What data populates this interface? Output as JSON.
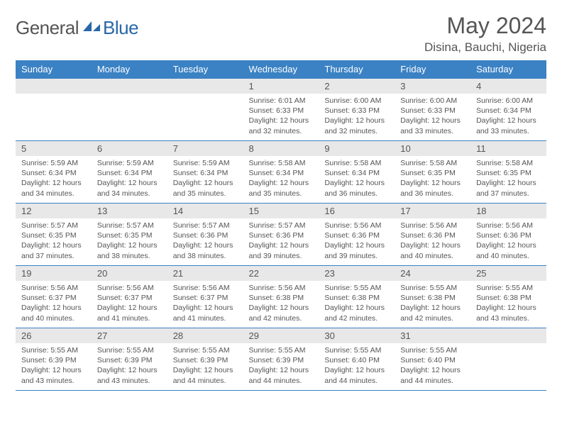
{
  "brand": {
    "part1": "General",
    "part2": "Blue"
  },
  "title": "May 2024",
  "location": "Disina, Bauchi, Nigeria",
  "colors": {
    "header_bg": "#3b82c4",
    "header_text": "#ffffff",
    "daynum_bg": "#e8e8e8",
    "border": "#3b82c4",
    "text": "#555555",
    "brand_gray": "#555555",
    "brand_blue": "#2968a8"
  },
  "weekdays": [
    "Sunday",
    "Monday",
    "Tuesday",
    "Wednesday",
    "Thursday",
    "Friday",
    "Saturday"
  ],
  "weeks": [
    [
      null,
      null,
      null,
      {
        "n": "1",
        "sr": "6:01 AM",
        "ss": "6:33 PM",
        "dl": "12 hours and 32 minutes."
      },
      {
        "n": "2",
        "sr": "6:00 AM",
        "ss": "6:33 PM",
        "dl": "12 hours and 32 minutes."
      },
      {
        "n": "3",
        "sr": "6:00 AM",
        "ss": "6:33 PM",
        "dl": "12 hours and 33 minutes."
      },
      {
        "n": "4",
        "sr": "6:00 AM",
        "ss": "6:34 PM",
        "dl": "12 hours and 33 minutes."
      }
    ],
    [
      {
        "n": "5",
        "sr": "5:59 AM",
        "ss": "6:34 PM",
        "dl": "12 hours and 34 minutes."
      },
      {
        "n": "6",
        "sr": "5:59 AM",
        "ss": "6:34 PM",
        "dl": "12 hours and 34 minutes."
      },
      {
        "n": "7",
        "sr": "5:59 AM",
        "ss": "6:34 PM",
        "dl": "12 hours and 35 minutes."
      },
      {
        "n": "8",
        "sr": "5:58 AM",
        "ss": "6:34 PM",
        "dl": "12 hours and 35 minutes."
      },
      {
        "n": "9",
        "sr": "5:58 AM",
        "ss": "6:34 PM",
        "dl": "12 hours and 36 minutes."
      },
      {
        "n": "10",
        "sr": "5:58 AM",
        "ss": "6:35 PM",
        "dl": "12 hours and 36 minutes."
      },
      {
        "n": "11",
        "sr": "5:58 AM",
        "ss": "6:35 PM",
        "dl": "12 hours and 37 minutes."
      }
    ],
    [
      {
        "n": "12",
        "sr": "5:57 AM",
        "ss": "6:35 PM",
        "dl": "12 hours and 37 minutes."
      },
      {
        "n": "13",
        "sr": "5:57 AM",
        "ss": "6:35 PM",
        "dl": "12 hours and 38 minutes."
      },
      {
        "n": "14",
        "sr": "5:57 AM",
        "ss": "6:36 PM",
        "dl": "12 hours and 38 minutes."
      },
      {
        "n": "15",
        "sr": "5:57 AM",
        "ss": "6:36 PM",
        "dl": "12 hours and 39 minutes."
      },
      {
        "n": "16",
        "sr": "5:56 AM",
        "ss": "6:36 PM",
        "dl": "12 hours and 39 minutes."
      },
      {
        "n": "17",
        "sr": "5:56 AM",
        "ss": "6:36 PM",
        "dl": "12 hours and 40 minutes."
      },
      {
        "n": "18",
        "sr": "5:56 AM",
        "ss": "6:36 PM",
        "dl": "12 hours and 40 minutes."
      }
    ],
    [
      {
        "n": "19",
        "sr": "5:56 AM",
        "ss": "6:37 PM",
        "dl": "12 hours and 40 minutes."
      },
      {
        "n": "20",
        "sr": "5:56 AM",
        "ss": "6:37 PM",
        "dl": "12 hours and 41 minutes."
      },
      {
        "n": "21",
        "sr": "5:56 AM",
        "ss": "6:37 PM",
        "dl": "12 hours and 41 minutes."
      },
      {
        "n": "22",
        "sr": "5:56 AM",
        "ss": "6:38 PM",
        "dl": "12 hours and 42 minutes."
      },
      {
        "n": "23",
        "sr": "5:55 AM",
        "ss": "6:38 PM",
        "dl": "12 hours and 42 minutes."
      },
      {
        "n": "24",
        "sr": "5:55 AM",
        "ss": "6:38 PM",
        "dl": "12 hours and 42 minutes."
      },
      {
        "n": "25",
        "sr": "5:55 AM",
        "ss": "6:38 PM",
        "dl": "12 hours and 43 minutes."
      }
    ],
    [
      {
        "n": "26",
        "sr": "5:55 AM",
        "ss": "6:39 PM",
        "dl": "12 hours and 43 minutes."
      },
      {
        "n": "27",
        "sr": "5:55 AM",
        "ss": "6:39 PM",
        "dl": "12 hours and 43 minutes."
      },
      {
        "n": "28",
        "sr": "5:55 AM",
        "ss": "6:39 PM",
        "dl": "12 hours and 44 minutes."
      },
      {
        "n": "29",
        "sr": "5:55 AM",
        "ss": "6:39 PM",
        "dl": "12 hours and 44 minutes."
      },
      {
        "n": "30",
        "sr": "5:55 AM",
        "ss": "6:40 PM",
        "dl": "12 hours and 44 minutes."
      },
      {
        "n": "31",
        "sr": "5:55 AM",
        "ss": "6:40 PM",
        "dl": "12 hours and 44 minutes."
      },
      null
    ]
  ],
  "labels": {
    "sunrise": "Sunrise: ",
    "sunset": "Sunset: ",
    "daylight": "Daylight: "
  }
}
